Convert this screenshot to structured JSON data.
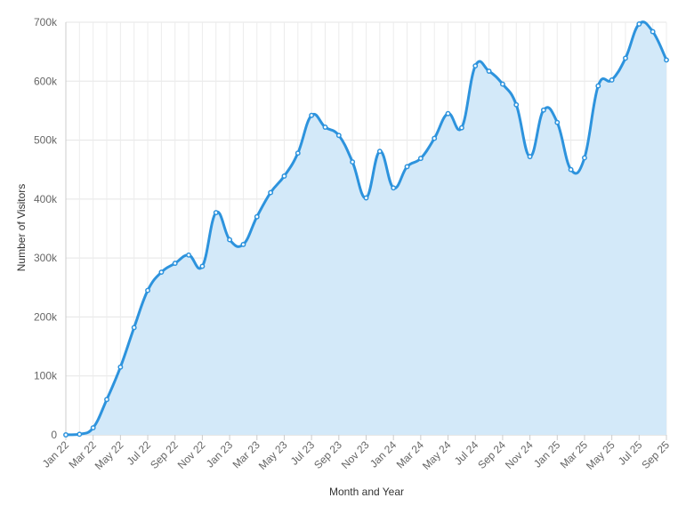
{
  "chart_data": {
    "type": "area",
    "title": "",
    "xlabel": "Month and Year",
    "ylabel": "Number of Visitors",
    "ylim": [
      0,
      700000
    ],
    "y_ticks": [
      {
        "value": 0,
        "label": "0"
      },
      {
        "value": 100000,
        "label": "100k"
      },
      {
        "value": 200000,
        "label": "200k"
      },
      {
        "value": 300000,
        "label": "300k"
      },
      {
        "value": 400000,
        "label": "400k"
      },
      {
        "value": 500000,
        "label": "500k"
      },
      {
        "value": 600000,
        "label": "600k"
      },
      {
        "value": 700000,
        "label": "700k"
      }
    ],
    "x_tick_labels": [
      "Jan 22",
      "Mar 22",
      "May 22",
      "Jul 22",
      "Sep 22",
      "Nov 22",
      "Jan 23",
      "Mar 23",
      "May 23",
      "Jul 23",
      "Sep 23",
      "Nov 23",
      "Jan 24",
      "Mar 24",
      "May 24",
      "Jul 24",
      "Sep 24",
      "Nov 24",
      "Jan 25",
      "Mar 25",
      "May 25",
      "Jul 25",
      "Sep 25"
    ],
    "grid": true,
    "legend": "none",
    "line_color": "#2d93dd",
    "fill_color": "#d3e9f9",
    "x": [
      "Jan 22",
      "Feb 22",
      "Mar 22",
      "Apr 22",
      "May 22",
      "Jun 22",
      "Jul 22",
      "Aug 22",
      "Sep 22",
      "Oct 22",
      "Nov 22",
      "Dec 22",
      "Jan 23",
      "Feb 23",
      "Mar 23",
      "Apr 23",
      "May 23",
      "Jun 23",
      "Jul 23",
      "Aug 23",
      "Sep 23",
      "Oct 23",
      "Nov 23",
      "Dec 23",
      "Jan 24",
      "Feb 24",
      "Mar 24",
      "Apr 24",
      "May 24",
      "Jun 24",
      "Jul 24",
      "Aug 24",
      "Sep 24",
      "Oct 24",
      "Nov 24",
      "Dec 24",
      "Jan 25",
      "Feb 25",
      "Mar 25",
      "Apr 25",
      "May 25",
      "Jun 25",
      "Jul 25",
      "Aug 25",
      "Sep 25"
    ],
    "series": [
      {
        "values": [
          0,
          1000,
          12000,
          60000,
          115000,
          182000,
          245000,
          276000,
          291000,
          305000,
          286000,
          377000,
          331000,
          323000,
          370000,
          411000,
          439000,
          478000,
          542000,
          522000,
          508000,
          463000,
          402000,
          481000,
          419000,
          455000,
          469000,
          503000,
          545000,
          521000,
          626000,
          617000,
          595000,
          560000,
          472000,
          551000,
          530000,
          450000,
          470000,
          592000,
          602000,
          639000,
          697000,
          684000,
          636000
        ]
      }
    ]
  }
}
